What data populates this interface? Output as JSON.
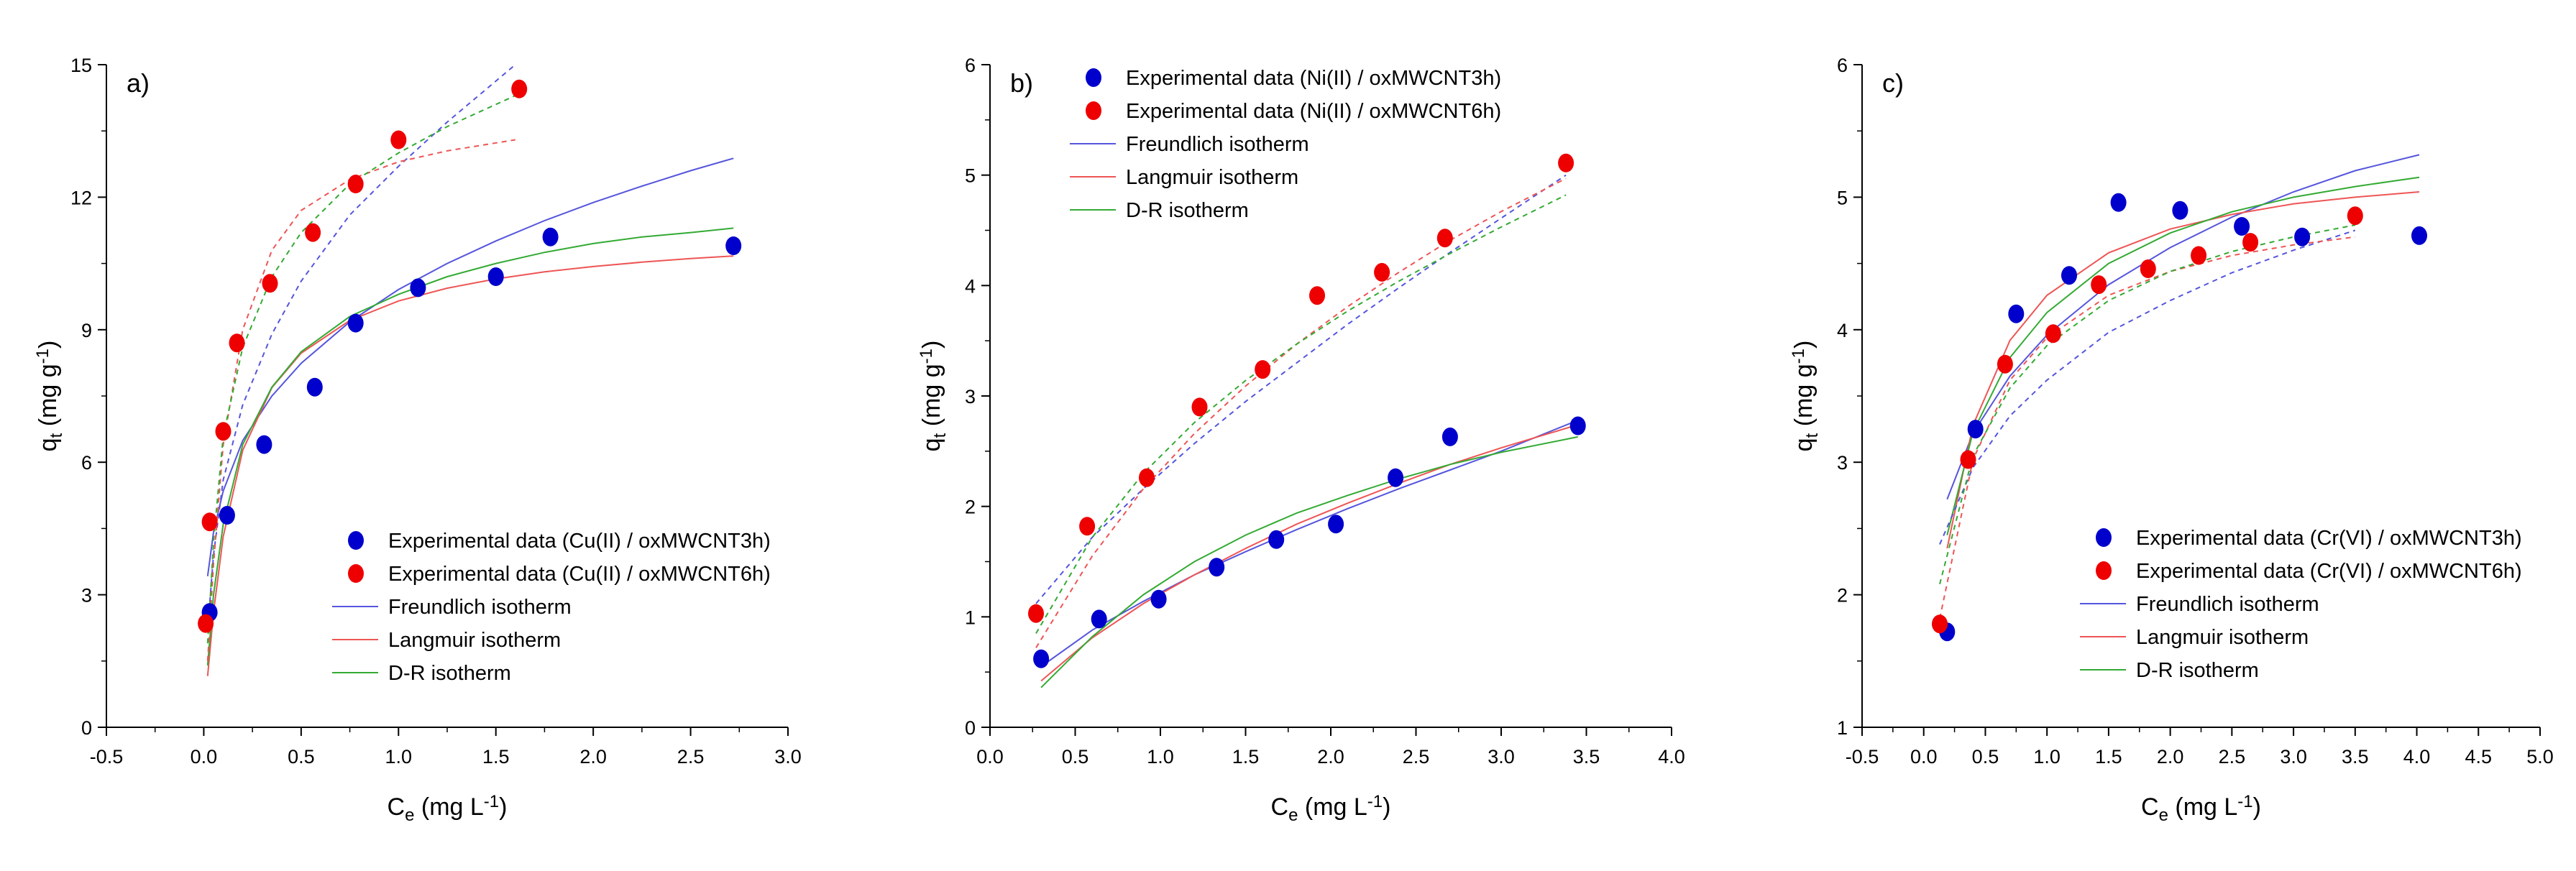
{
  "chart_data": [
    {
      "type": "scatter",
      "panel_label": "a)",
      "xlabel": "C_e (mg L^-1)",
      "ylabel": "q_t (mg g^-1)",
      "xlim": [
        -0.5,
        3.0
      ],
      "ylim": [
        0,
        15
      ],
      "xticks": [
        -0.5,
        0.0,
        0.5,
        1.0,
        1.5,
        2.0,
        2.5,
        3.0
      ],
      "yticks": [
        0,
        3,
        6,
        9,
        12,
        15
      ],
      "legend_position": "bottom-right",
      "series": [
        {
          "name": "Experimental data (Cu(II) / oxMWCNT3h)",
          "kind": "points",
          "color": "#0000cc",
          "x": [
            0.03,
            0.12,
            0.31,
            0.57,
            0.78,
            1.1,
            1.5,
            1.78,
            2.72
          ],
          "y": [
            2.6,
            4.8,
            6.4,
            7.7,
            9.15,
            9.95,
            10.2,
            11.1,
            10.9
          ]
        },
        {
          "name": "Experimental data (Cu(II) / oxMWCNT6h)",
          "kind": "points",
          "color": "#ee0000",
          "x": [
            0.01,
            0.03,
            0.1,
            0.17,
            0.34,
            0.56,
            0.78,
            1.0,
            1.62
          ],
          "y": [
            2.35,
            4.65,
            6.7,
            8.7,
            10.05,
            11.2,
            12.3,
            13.3,
            14.45
          ]
        },
        {
          "name": "Freundlich isotherm",
          "kind": "curve",
          "color": "#5555dd",
          "style": "solid",
          "x": [
            0.02,
            0.05,
            0.1,
            0.2,
            0.35,
            0.5,
            0.75,
            1.0,
            1.25,
            1.5,
            1.75,
            2.0,
            2.25,
            2.5,
            2.72
          ],
          "y": [
            3.42,
            4.42,
            5.35,
            6.49,
            7.5,
            8.24,
            9.18,
            9.91,
            10.5,
            11.01,
            11.47,
            11.88,
            12.25,
            12.6,
            12.88
          ]
        },
        {
          "name": "Langmuir isotherm",
          "kind": "curve",
          "color": "#ee5555",
          "style": "solid",
          "x": [
            0.02,
            0.05,
            0.1,
            0.2,
            0.35,
            0.5,
            0.75,
            1.0,
            1.25,
            1.5,
            1.75,
            2.0,
            2.25,
            2.5,
            2.72
          ],
          "y": [
            1.16,
            2.61,
            4.32,
            6.27,
            7.69,
            8.47,
            9.21,
            9.65,
            9.94,
            10.15,
            10.31,
            10.43,
            10.53,
            10.61,
            10.67
          ]
        },
        {
          "name": "D-R isotherm",
          "kind": "curve",
          "color": "#33aa33",
          "style": "solid",
          "x": [
            0.02,
            0.05,
            0.1,
            0.2,
            0.35,
            0.5,
            0.75,
            1.0,
            1.25,
            1.5,
            1.75,
            2.0,
            2.25,
            2.5,
            2.72
          ],
          "y": [
            1.4,
            3.0,
            4.6,
            6.4,
            7.7,
            8.5,
            9.3,
            9.8,
            10.2,
            10.5,
            10.75,
            10.95,
            11.1,
            11.2,
            11.3
          ]
        },
        {
          "name": "Freundlich (oxMWCNT6h)",
          "kind": "curve",
          "color": "#5555dd",
          "style": "dashed",
          "in_legend": false,
          "x": [
            0.02,
            0.05,
            0.1,
            0.2,
            0.35,
            0.5,
            0.75,
            1.0,
            1.25,
            1.6
          ],
          "y": [
            2.2,
            3.9,
            5.6,
            7.3,
            8.9,
            10.1,
            11.6,
            12.7,
            13.7,
            15.0
          ]
        },
        {
          "name": "Langmuir (oxMWCNT6h)",
          "kind": "curve",
          "color": "#ee5555",
          "style": "dashed",
          "in_legend": false,
          "x": [
            0.02,
            0.05,
            0.1,
            0.2,
            0.35,
            0.5,
            0.75,
            1.0,
            1.25,
            1.6
          ],
          "y": [
            1.5,
            3.7,
            6.4,
            9.0,
            10.8,
            11.7,
            12.4,
            12.8,
            13.05,
            13.3
          ]
        },
        {
          "name": "D-R (oxMWCNT6h)",
          "kind": "curve",
          "color": "#33aa33",
          "style": "dashed",
          "in_legend": false,
          "x": [
            0.02,
            0.05,
            0.1,
            0.2,
            0.35,
            0.5,
            0.75,
            1.0,
            1.25,
            1.6
          ],
          "y": [
            1.9,
            4.2,
            6.6,
            8.6,
            10.2,
            11.2,
            12.3,
            13.0,
            13.6,
            14.3
          ]
        }
      ]
    },
    {
      "type": "scatter",
      "panel_label": "b)",
      "xlabel": "C_e (mg L^-1)",
      "ylabel": "q_t (mg g^-1)",
      "xlim": [
        0.0,
        4.0
      ],
      "ylim": [
        0,
        6
      ],
      "xticks": [
        0.0,
        0.5,
        1.0,
        1.5,
        2.0,
        2.5,
        3.0,
        3.5,
        4.0
      ],
      "yticks": [
        0,
        1,
        2,
        3,
        4,
        5,
        6
      ],
      "legend_position": "top-left",
      "series": [
        {
          "name": "Experimental data (Ni(II) / oxMWCNT3h)",
          "kind": "points",
          "color": "#0000cc",
          "x": [
            0.3,
            0.64,
            0.99,
            1.33,
            1.68,
            2.03,
            2.38,
            2.7,
            3.45
          ],
          "y": [
            0.62,
            0.98,
            1.16,
            1.45,
            1.7,
            1.84,
            2.26,
            2.63,
            2.73
          ]
        },
        {
          "name": "Experimental data (Ni(II) / oxMWCNT6h)",
          "kind": "points",
          "color": "#ee0000",
          "x": [
            0.27,
            0.57,
            0.92,
            1.23,
            1.6,
            1.92,
            2.3,
            2.67,
            3.38
          ],
          "y": [
            1.03,
            1.82,
            2.26,
            2.9,
            3.24,
            3.91,
            4.12,
            4.43,
            5.11
          ]
        },
        {
          "name": "Freundlich isotherm",
          "kind": "curve",
          "color": "#5555dd",
          "style": "solid",
          "x": [
            0.3,
            0.6,
            0.9,
            1.2,
            1.5,
            1.8,
            2.1,
            2.4,
            2.7,
            3.0,
            3.45
          ],
          "y": [
            0.55,
            0.88,
            1.14,
            1.38,
            1.59,
            1.79,
            1.98,
            2.16,
            2.33,
            2.5,
            2.78
          ]
        },
        {
          "name": "Langmuir isotherm",
          "kind": "curve",
          "color": "#ee5555",
          "style": "solid",
          "x": [
            0.3,
            0.6,
            0.9,
            1.2,
            1.5,
            1.8,
            2.1,
            2.4,
            2.7,
            3.0,
            3.45
          ],
          "y": [
            0.42,
            0.81,
            1.12,
            1.38,
            1.62,
            1.84,
            2.03,
            2.21,
            2.38,
            2.53,
            2.74
          ]
        },
        {
          "name": "D-R isotherm",
          "kind": "curve",
          "color": "#33aa33",
          "style": "solid",
          "x": [
            0.3,
            0.6,
            0.9,
            1.2,
            1.5,
            1.8,
            2.1,
            2.4,
            2.7,
            3.0,
            3.45
          ],
          "y": [
            0.36,
            0.82,
            1.2,
            1.5,
            1.74,
            1.94,
            2.1,
            2.25,
            2.38,
            2.49,
            2.63
          ]
        },
        {
          "name": "Freundlich (oxMWCNT6h)",
          "kind": "curve",
          "color": "#5555dd",
          "style": "dashed",
          "in_legend": false,
          "x": [
            0.27,
            0.6,
            0.9,
            1.2,
            1.5,
            1.8,
            2.1,
            2.4,
            2.7,
            3.0,
            3.38
          ],
          "y": [
            1.12,
            1.72,
            2.16,
            2.57,
            2.95,
            3.3,
            3.65,
            3.98,
            4.3,
            4.61,
            5.0
          ]
        },
        {
          "name": "Langmuir (oxMWCNT6h)",
          "kind": "curve",
          "color": "#ee5555",
          "style": "dashed",
          "in_legend": false,
          "x": [
            0.27,
            0.6,
            0.9,
            1.2,
            1.5,
            1.8,
            2.1,
            2.4,
            2.7,
            3.0,
            3.38
          ],
          "y": [
            0.72,
            1.55,
            2.16,
            2.66,
            3.09,
            3.47,
            3.81,
            4.12,
            4.41,
            4.67,
            4.97
          ]
        },
        {
          "name": "D-R (oxMWCNT6h)",
          "kind": "curve",
          "color": "#33aa33",
          "style": "dashed",
          "in_legend": false,
          "x": [
            0.27,
            0.6,
            0.9,
            1.2,
            1.5,
            1.8,
            2.1,
            2.4,
            2.7,
            3.0,
            3.38
          ],
          "y": [
            0.85,
            1.72,
            2.3,
            2.76,
            3.14,
            3.47,
            3.77,
            4.04,
            4.29,
            4.53,
            4.82
          ]
        }
      ]
    },
    {
      "type": "scatter",
      "panel_label": "c)",
      "xlabel": "C_e (mg L^-1)",
      "ylabel": "q_t (mg g^-1)",
      "xlim": [
        -0.5,
        5.0
      ],
      "ylim": [
        1,
        6
      ],
      "xticks": [
        -0.5,
        0.0,
        0.5,
        1.0,
        1.5,
        2.0,
        2.5,
        3.0,
        3.5,
        4.0,
        4.5,
        5.0
      ],
      "yticks": [
        1,
        2,
        3,
        4,
        5,
        6
      ],
      "legend_position": "bottom-right",
      "series": [
        {
          "name": "Experimental data (Cr(VI) / oxMWCNT3h)",
          "kind": "points",
          "color": "#0000cc",
          "x": [
            0.19,
            0.42,
            0.75,
            1.18,
            1.58,
            2.08,
            2.58,
            3.07,
            4.02
          ],
          "y": [
            1.72,
            3.25,
            4.12,
            4.41,
            4.96,
            4.9,
            4.78,
            4.7,
            4.71
          ]
        },
        {
          "name": "Experimental data (Cr(VI) / oxMWCNT6h)",
          "kind": "points",
          "color": "#ee0000",
          "x": [
            0.13,
            0.36,
            0.66,
            1.05,
            1.42,
            1.82,
            2.23,
            2.65,
            3.5
          ],
          "y": [
            1.78,
            3.02,
            3.74,
            3.97,
            4.34,
            4.46,
            4.56,
            4.66,
            4.86
          ]
        },
        {
          "name": "Freundlich isotherm",
          "kind": "curve",
          "color": "#5555dd",
          "style": "solid",
          "x": [
            0.19,
            0.4,
            0.7,
            1.0,
            1.5,
            2.0,
            2.5,
            3.0,
            3.5,
            4.02
          ],
          "y": [
            2.72,
            3.22,
            3.65,
            3.96,
            4.34,
            4.62,
            4.85,
            5.04,
            5.2,
            5.32
          ]
        },
        {
          "name": "Langmuir isotherm",
          "kind": "curve",
          "color": "#ee5555",
          "style": "solid",
          "x": [
            0.19,
            0.4,
            0.7,
            1.0,
            1.5,
            2.0,
            2.5,
            3.0,
            3.5,
            4.02
          ],
          "y": [
            2.35,
            3.28,
            3.92,
            4.26,
            4.58,
            4.76,
            4.87,
            4.95,
            5.0,
            5.04
          ]
        },
        {
          "name": "D-R isotherm",
          "kind": "curve",
          "color": "#33aa33",
          "style": "solid",
          "x": [
            0.19,
            0.4,
            0.7,
            1.0,
            1.5,
            2.0,
            2.5,
            3.0,
            3.5,
            4.02
          ],
          "y": [
            2.45,
            3.23,
            3.79,
            4.13,
            4.5,
            4.73,
            4.89,
            5.0,
            5.08,
            5.15
          ]
        },
        {
          "name": "Freundlich (oxMWCNT6h)",
          "kind": "curve",
          "color": "#5555dd",
          "style": "dashed",
          "in_legend": false,
          "x": [
            0.13,
            0.4,
            0.7,
            1.0,
            1.5,
            2.0,
            2.5,
            3.0,
            3.5
          ],
          "y": [
            2.38,
            2.96,
            3.35,
            3.62,
            3.98,
            4.22,
            4.43,
            4.6,
            4.75
          ]
        },
        {
          "name": "Langmuir (oxMWCNT6h)",
          "kind": "curve",
          "color": "#ee5555",
          "style": "dashed",
          "in_legend": false,
          "x": [
            0.13,
            0.4,
            0.7,
            1.0,
            1.5,
            2.0,
            2.5,
            3.0,
            3.5
          ],
          "y": [
            1.82,
            3.02,
            3.62,
            3.94,
            4.26,
            4.44,
            4.56,
            4.64,
            4.7
          ]
        },
        {
          "name": "D-R (oxMWCNT6h)",
          "kind": "curve",
          "color": "#33aa33",
          "style": "dashed",
          "in_legend": false,
          "x": [
            0.13,
            0.4,
            0.7,
            1.0,
            1.5,
            2.0,
            2.5,
            3.0,
            3.5
          ],
          "y": [
            2.08,
            3.05,
            3.56,
            3.88,
            4.22,
            4.44,
            4.59,
            4.7,
            4.79
          ]
        }
      ]
    }
  ]
}
